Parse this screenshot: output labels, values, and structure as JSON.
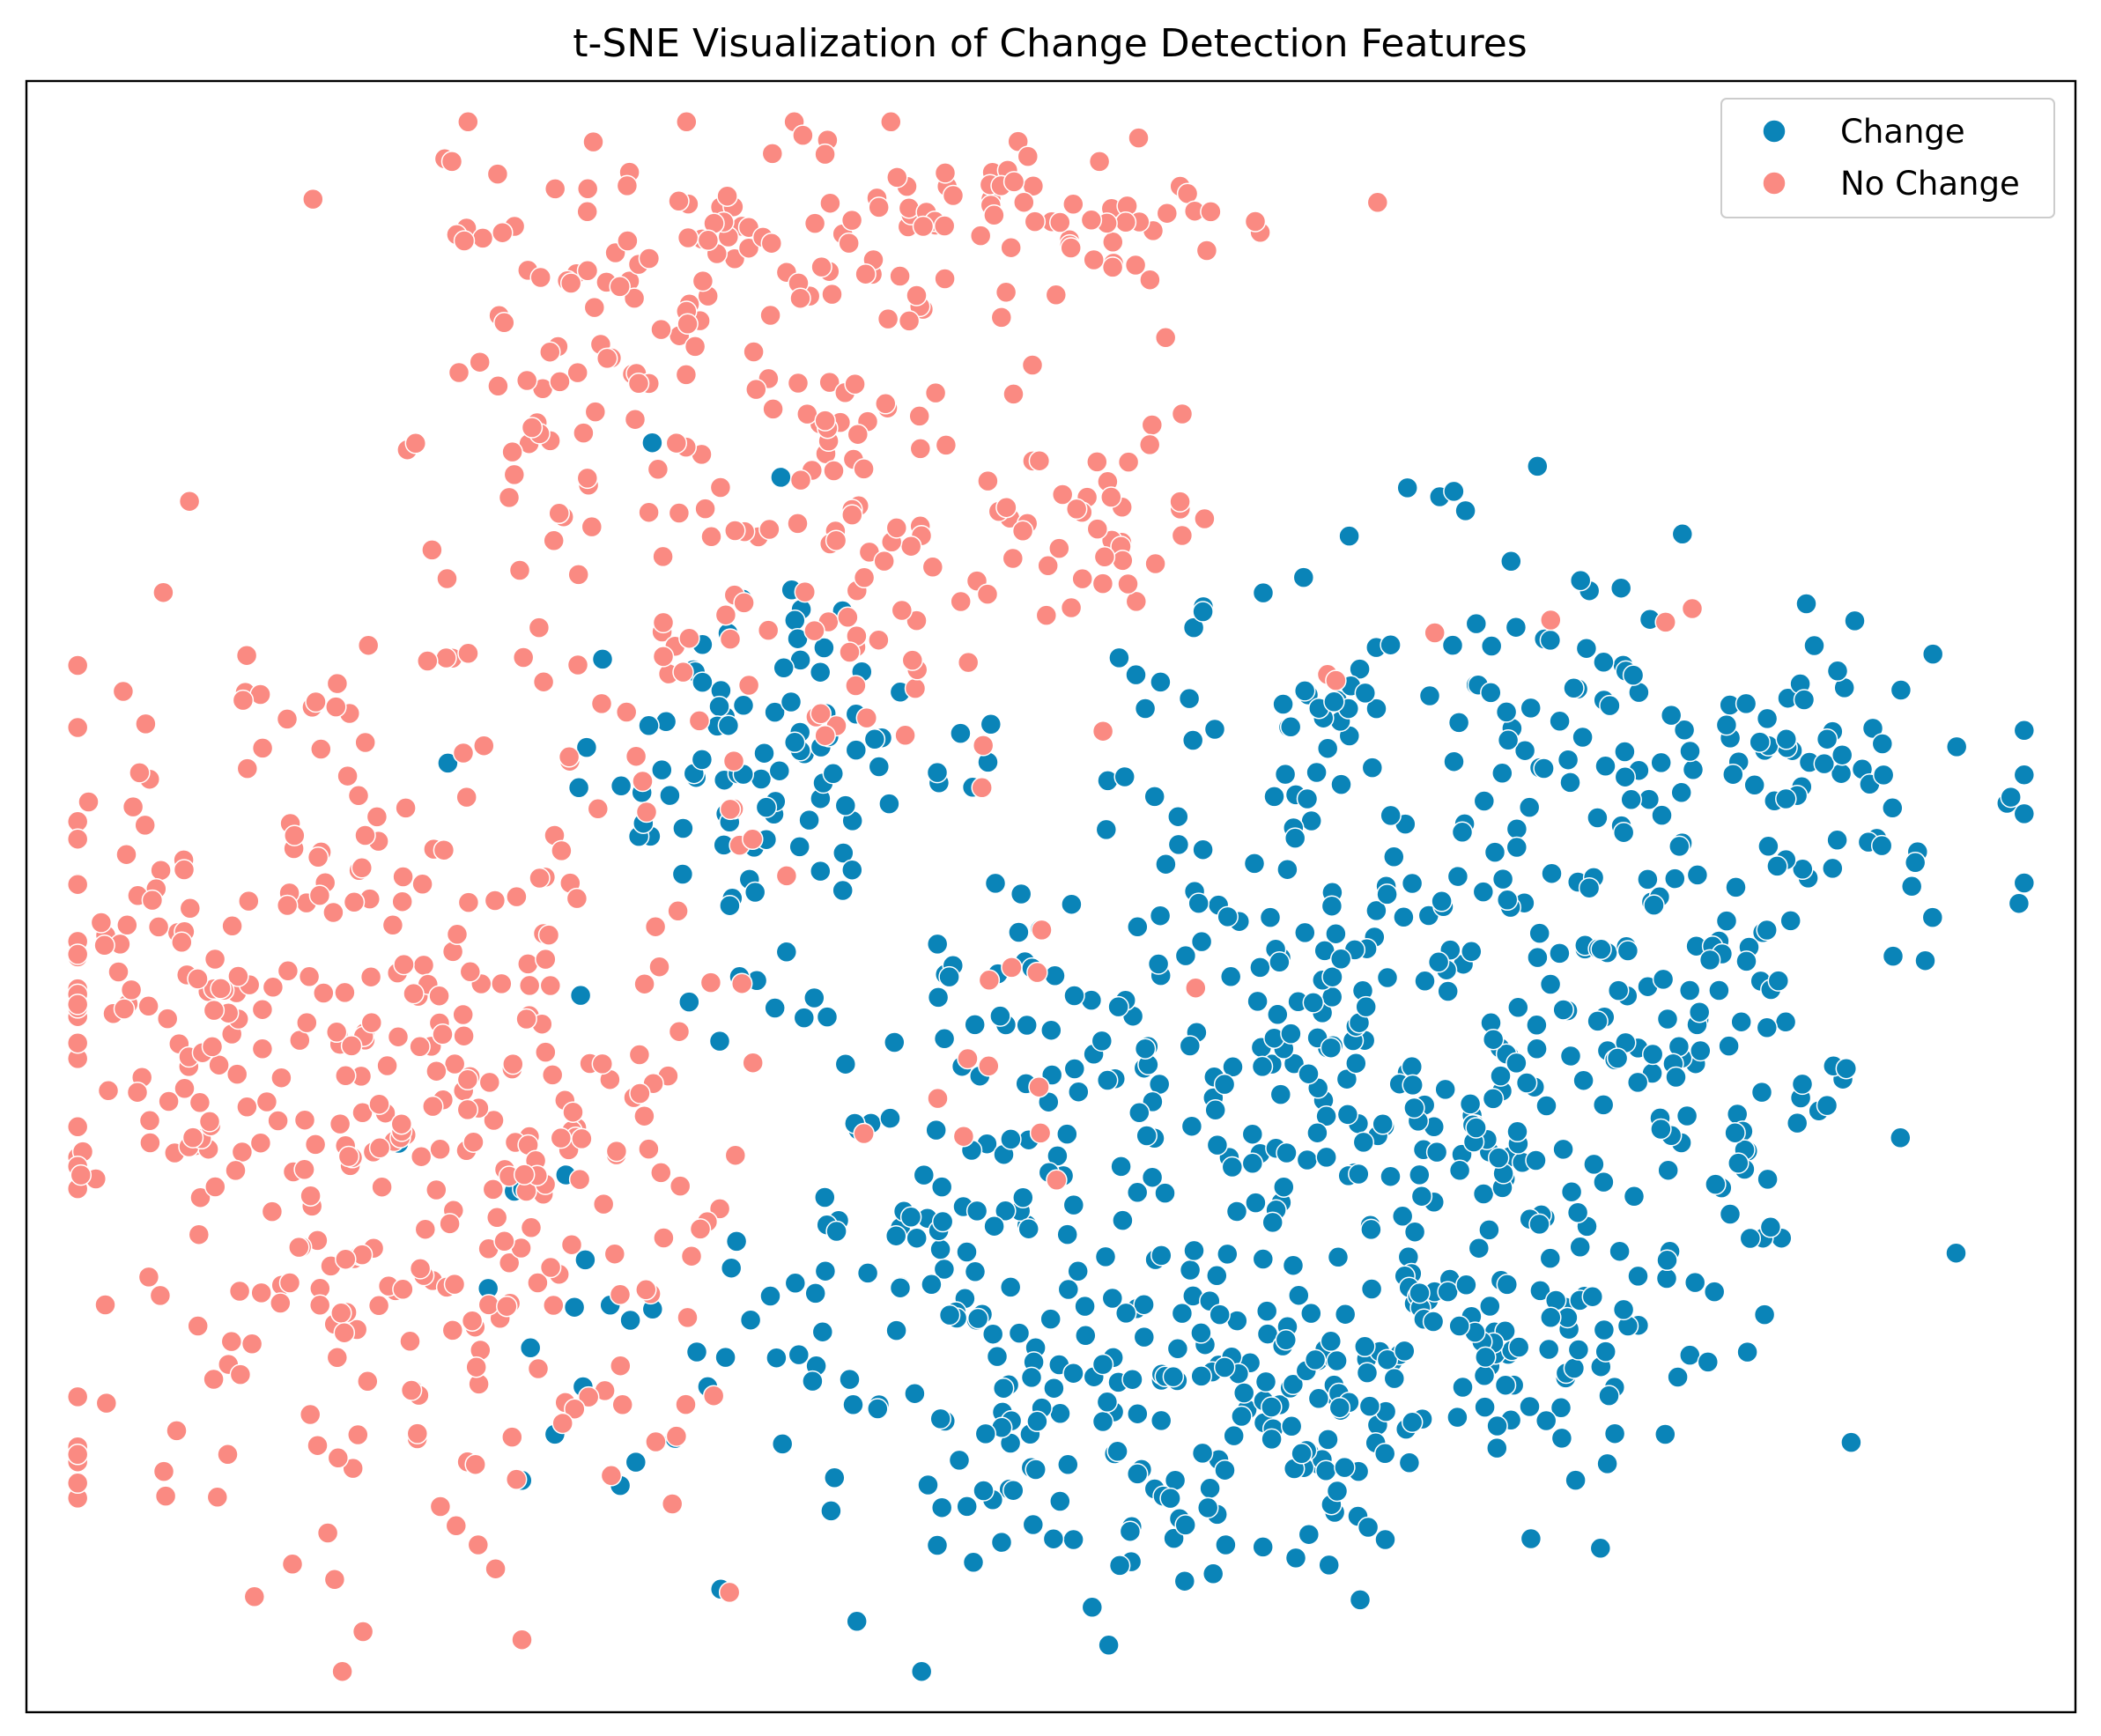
{
  "chart_data": {
    "type": "scatter",
    "title": "t-SNE Visualization of Change Detection Features",
    "xlabel": "",
    "ylabel": "",
    "ticks_visible": false,
    "grid": false,
    "legend_position": "top-right",
    "xlim": [
      -60,
      60
    ],
    "ylim": [
      -60,
      60
    ],
    "point_edge_color": "#ffffff",
    "series": [
      {
        "name": "Change",
        "color": "#0a84b8",
        "clusters": [
          {
            "cx": 0.5,
            "cy": -35,
            "sx": 14,
            "sy": 9,
            "n": 210
          },
          {
            "cx": 24,
            "cy": -30,
            "sx": 9,
            "sy": 6,
            "n": 120
          },
          {
            "cx": 38,
            "cy": -12,
            "sx": 6,
            "sy": 6,
            "n": 60
          },
          {
            "cx": 44,
            "cy": 7,
            "sx": 7,
            "sy": 5,
            "n": 70
          },
          {
            "cx": 23,
            "cy": 12,
            "sx": 11,
            "sy": 8,
            "n": 150
          },
          {
            "cx": 24,
            "cy": -12,
            "sx": 9,
            "sy": 7,
            "n": 110
          },
          {
            "cx": 4,
            "cy": -12,
            "sx": 12,
            "sy": 8,
            "n": 130
          },
          {
            "cx": -17,
            "cy": 10,
            "sx": 5,
            "sy": 7,
            "n": 90
          },
          {
            "cx": 15,
            "cy": -37,
            "sx": 9,
            "sy": 5,
            "n": 70
          }
        ]
      },
      {
        "name": "No Change",
        "color": "#fa8a82",
        "clusters": [
          {
            "cx": -38,
            "cy": -16,
            "sx": 10,
            "sy": 18,
            "n": 400
          },
          {
            "cx": -52,
            "cy": -5,
            "sx": 5,
            "sy": 8,
            "n": 60
          },
          {
            "cx": -22,
            "cy": 44,
            "sx": 8,
            "sy": 7,
            "n": 120
          },
          {
            "cx": -1,
            "cy": 50,
            "sx": 8,
            "sy": 4,
            "n": 70
          },
          {
            "cx": -18,
            "cy": 25,
            "sx": 7,
            "sy": 7,
            "n": 60
          },
          {
            "cx": -8,
            "cy": 25,
            "sx": 4,
            "sy": 10,
            "n": 40
          },
          {
            "cx": 2,
            "cy": 28,
            "sx": 3,
            "sy": 5,
            "n": 40
          },
          {
            "cx": -3,
            "cy": -14,
            "sx": 3,
            "sy": 9,
            "n": 14
          },
          {
            "cx": 26,
            "cy": 20,
            "sx": 7,
            "sy": 3,
            "n": 6
          }
        ]
      }
    ]
  }
}
